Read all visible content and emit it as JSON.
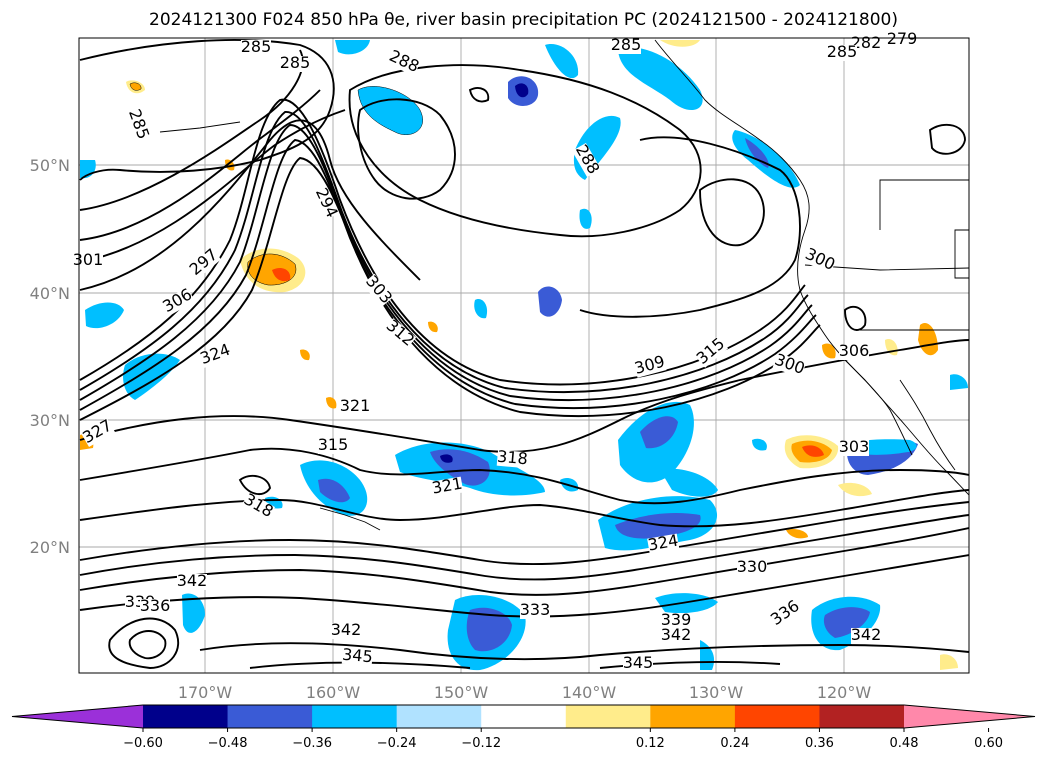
{
  "title_text": "2024121300 F024 850 hPa θe, river basin precipitation PC (2024121500 - 2024121800)",
  "map": {
    "lon_labels": [
      "170°W",
      "160°W",
      "150°W",
      "140°W",
      "130°W",
      "120°W"
    ],
    "lat_labels": [
      "20°N",
      "30°N",
      "40°N",
      "50°N"
    ]
  },
  "contour_labels": [
    {
      "text": "285"
    },
    {
      "text": "285"
    },
    {
      "text": "282"
    },
    {
      "text": "279"
    },
    {
      "text": "285"
    },
    {
      "text": "285"
    },
    {
      "text": "288"
    },
    {
      "text": "288"
    },
    {
      "text": "285"
    },
    {
      "text": "294"
    },
    {
      "text": "297"
    },
    {
      "text": "306"
    },
    {
      "text": "303"
    },
    {
      "text": "312"
    },
    {
      "text": "300"
    },
    {
      "text": "324"
    },
    {
      "text": "321"
    },
    {
      "text": "309"
    },
    {
      "text": "315"
    },
    {
      "text": "300"
    },
    {
      "text": "306"
    },
    {
      "text": "327"
    },
    {
      "text": "315"
    },
    {
      "text": "318"
    },
    {
      "text": "321"
    },
    {
      "text": "303"
    },
    {
      "text": "318"
    },
    {
      "text": "324"
    },
    {
      "text": "330"
    },
    {
      "text": "339"
    },
    {
      "text": "336"
    },
    {
      "text": "342"
    },
    {
      "text": "333"
    },
    {
      "text": "336"
    },
    {
      "text": "339"
    },
    {
      "text": "342"
    },
    {
      "text": "342"
    },
    {
      "text": "342"
    },
    {
      "text": "345"
    },
    {
      "text": "345"
    },
    {
      "text": "301"
    }
  ],
  "colorbar": {
    "tick_labels": [
      "−0.60",
      "−0.48",
      "−0.36",
      "−0.24",
      "−0.12",
      "0.12",
      "0.24",
      "0.36",
      "0.48",
      "0.60"
    ],
    "colors": [
      "#9b30d9",
      "#00008b",
      "#3a5bd6",
      "#00bfff",
      "#b0e2ff",
      "#ffffff",
      "#ffec8b",
      "#ffa500",
      "#ff4500",
      "#b22222",
      "#ff88aa"
    ]
  },
  "field_colors": {
    "neg_1": "#b0e2ff",
    "neg_2": "#00bfff",
    "neg_3": "#3a5bd6",
    "neg_4": "#00008b",
    "pos_1": "#ffec8b",
    "pos_2": "#ffa500",
    "pos_3": "#ff4500"
  }
}
